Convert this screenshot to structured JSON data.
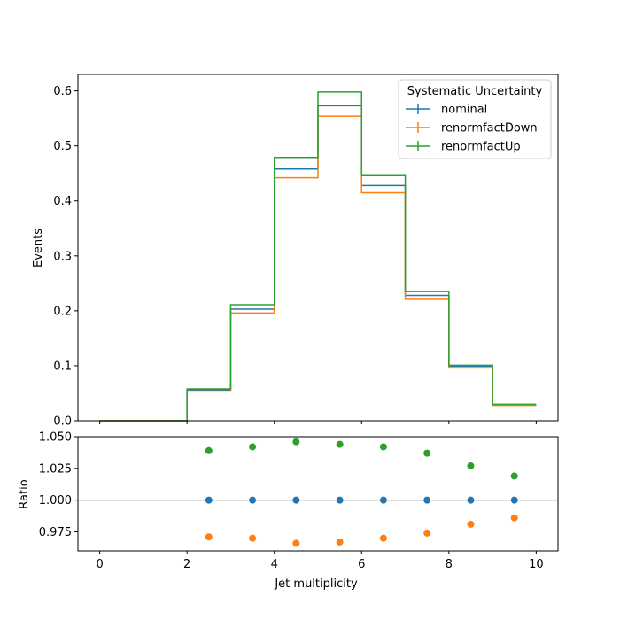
{
  "chart_data": {
    "type": "line",
    "legend": {
      "title": "Systematic Uncertainty",
      "placement": "top-right"
    },
    "xlabel": "Jet multiplicity",
    "xlim": [
      -0.5,
      10.5
    ],
    "x_ticks": [
      0,
      2,
      4,
      6,
      8,
      10
    ],
    "bin_edges": [
      0,
      1,
      2,
      3,
      4,
      5,
      6,
      7,
      8,
      9,
      10
    ],
    "bin_centers": [
      2.5,
      3.5,
      4.5,
      5.5,
      6.5,
      7.5,
      8.5,
      9.5
    ],
    "main": {
      "ylabel": "Events",
      "ylim": [
        0,
        0.63
      ],
      "y_ticks": [
        "0.0",
        "0.1",
        "0.2",
        "0.3",
        "0.4",
        "0.5",
        "0.6"
      ],
      "series": [
        {
          "name": "nominal",
          "color": "#1f77b4",
          "values": [
            0,
            0,
            0.056,
            0.203,
            0.458,
            0.573,
            0.428,
            0.228,
            0.099,
            0.029
          ]
        },
        {
          "name": "renormfactDown",
          "color": "#ff7f0e",
          "values": [
            0,
            0,
            0.054,
            0.196,
            0.442,
            0.554,
            0.415,
            0.221,
            0.096,
            0.028
          ]
        },
        {
          "name": "renormfactUp",
          "color": "#2ca02c",
          "values": [
            0,
            0,
            0.058,
            0.211,
            0.479,
            0.598,
            0.446,
            0.235,
            0.101,
            0.03
          ]
        }
      ]
    },
    "ratio": {
      "ylabel": "Ratio",
      "ylim": [
        0.96,
        1.05
      ],
      "y_ticks": [
        "0.975",
        "1.000",
        "1.025",
        "1.050"
      ],
      "reference_line": 1.0,
      "series": [
        {
          "name": "nominal",
          "color": "#1f77b4",
          "values": [
            1.0,
            1.0,
            1.0,
            1.0,
            1.0,
            1.0,
            1.0,
            1.0
          ]
        },
        {
          "name": "renormfactDown",
          "color": "#ff7f0e",
          "values": [
            0.971,
            0.97,
            0.966,
            0.967,
            0.97,
            0.974,
            0.981,
            0.986
          ]
        },
        {
          "name": "renormfactUp",
          "color": "#2ca02c",
          "values": [
            1.039,
            1.042,
            1.046,
            1.044,
            1.042,
            1.037,
            1.027,
            1.019
          ]
        }
      ]
    }
  }
}
